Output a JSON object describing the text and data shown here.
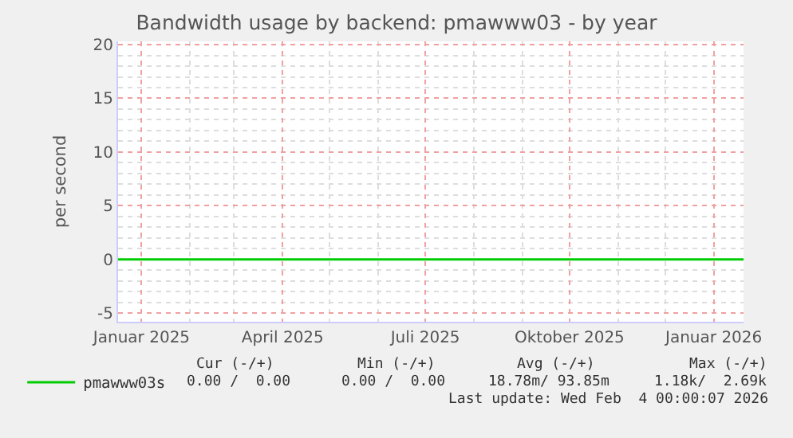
{
  "chart_data": {
    "type": "line",
    "title": "Bandwidth usage by backend: pmawww03 - by year",
    "ylabel": "per second",
    "x": [
      "2024-12-17",
      "2025-03-01",
      "2025-06-01",
      "2025-09-01",
      "2025-12-01",
      "2026-01-20"
    ],
    "series": [
      {
        "name": "pmawww03s",
        "color": "#00cc00",
        "values": [
          0,
          0,
          0,
          0,
          0,
          0
        ]
      }
    ],
    "xlim": [
      "2024-12-17",
      "2026-01-20"
    ],
    "xticks": [
      {
        "value": "2025-01-01",
        "label": "Januar 2025"
      },
      {
        "value": "2025-04-01",
        "label": "April 2025"
      },
      {
        "value": "2025-07-01",
        "label": "Juli 2025"
      },
      {
        "value": "2025-10-01",
        "label": "Oktober 2025"
      },
      {
        "value": "2026-01-01",
        "label": "Januar 2026"
      }
    ],
    "ylim": [
      -5.8,
      20.3
    ],
    "yticks": [
      -5,
      0,
      5,
      10,
      15,
      20
    ],
    "grid": true,
    "legend": "bottom left",
    "annotations": [
      "Cur (-/+)",
      "Min (-/+)",
      "Avg (-/+)",
      "Max (-/+)",
      "0.00 /  0.00",
      "0.00 /  0.00",
      "18.78m/ 93.85m",
      "1.18k/  2.69k",
      "Last update: Wed Feb  4 00:00:07 2026"
    ]
  }
}
